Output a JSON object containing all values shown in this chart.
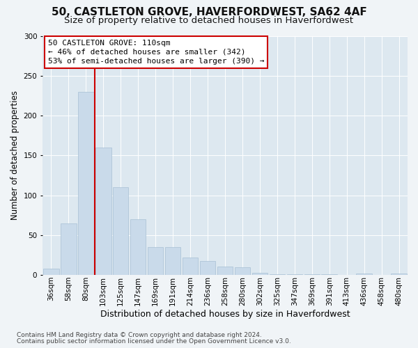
{
  "title": "50, CASTLETON GROVE, HAVERFORDWEST, SA62 4AF",
  "subtitle": "Size of property relative to detached houses in Haverfordwest",
  "xlabel": "Distribution of detached houses by size in Haverfordwest",
  "ylabel": "Number of detached properties",
  "footer1": "Contains HM Land Registry data © Crown copyright and database right 2024.",
  "footer2": "Contains public sector information licensed under the Open Government Licence v3.0.",
  "categories": [
    "36sqm",
    "58sqm",
    "80sqm",
    "103sqm",
    "125sqm",
    "147sqm",
    "169sqm",
    "191sqm",
    "214sqm",
    "236sqm",
    "258sqm",
    "280sqm",
    "302sqm",
    "325sqm",
    "347sqm",
    "369sqm",
    "391sqm",
    "413sqm",
    "436sqm",
    "458sqm",
    "480sqm"
  ],
  "values": [
    8,
    65,
    230,
    160,
    110,
    70,
    35,
    35,
    22,
    18,
    11,
    10,
    3,
    1,
    1,
    1,
    1,
    0,
    2,
    0,
    2
  ],
  "bar_color": "#c9daea",
  "bar_edge_color": "#a8c0d4",
  "vline_x_idx": 2.5,
  "vline_color": "#cc0000",
  "annotation_line1": "50 CASTLETON GROVE: 110sqm",
  "annotation_line2": "← 46% of detached houses are smaller (342)",
  "annotation_line3": "53% of semi-detached houses are larger (390) →",
  "annotation_box_facecolor": "#ffffff",
  "annotation_box_edgecolor": "#cc0000",
  "ylim": [
    0,
    300
  ],
  "yticks": [
    0,
    50,
    100,
    150,
    200,
    250,
    300
  ],
  "fig_bg_color": "#f0f4f7",
  "plot_bg_color": "#dde8f0",
  "grid_color": "#ffffff",
  "title_fontsize": 11,
  "subtitle_fontsize": 9.5,
  "xlabel_fontsize": 9,
  "ylabel_fontsize": 8.5,
  "tick_fontsize": 7.5,
  "ann_fontsize": 8,
  "footer_fontsize": 6.5
}
